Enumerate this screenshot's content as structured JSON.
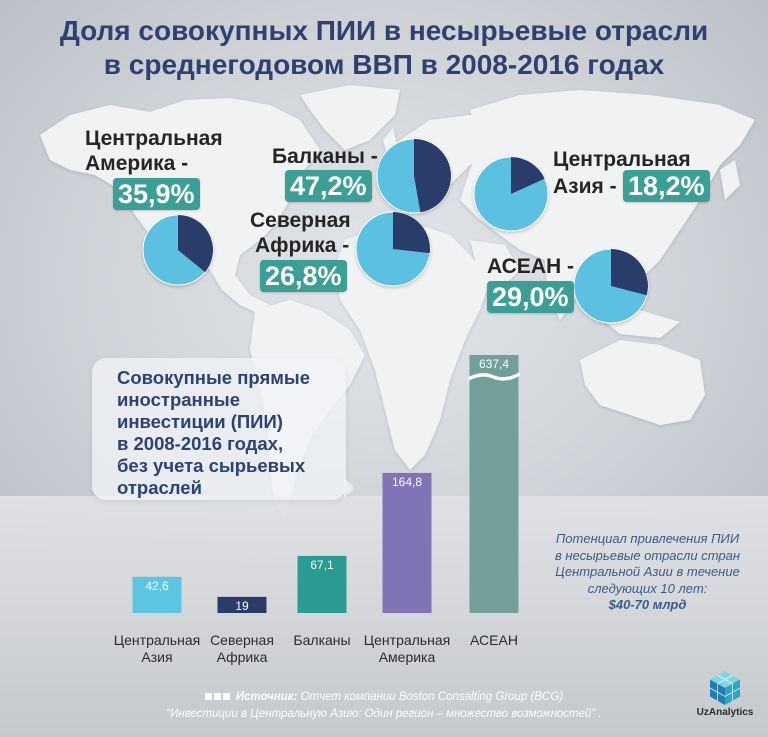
{
  "title_lines": [
    "Доля совокупных ПИИ в несырьевые отрасли",
    "в среднегодовом ВВП в 2008-2016 годах"
  ],
  "colors": {
    "title": "#2f4170",
    "pie_main": "#5bc1e0",
    "pie_slice": "#2c3c6b",
    "badge": "#3c9f95",
    "bars": [
      "#5cc6e2",
      "#2b3b6a",
      "#2a9b92",
      "#8073b6",
      "#739f9a"
    ]
  },
  "chart_data": [
    {
      "type": "pie",
      "regions": [
        {
          "name_lines": [
            "Центральная",
            "Америка -"
          ],
          "value": 35.9,
          "value_label": "35,9%"
        },
        {
          "name_lines": [
            "Балканы -"
          ],
          "value": 47.2,
          "value_label": "47,2%"
        },
        {
          "name_lines": [
            "Северная",
            "Африка -"
          ],
          "value": 26.8,
          "value_label": "26,8%"
        },
        {
          "name_lines": [
            "Центральная",
            "Азия -"
          ],
          "value": 18.2,
          "value_label": "18,2%"
        },
        {
          "name_lines": [
            "АСЕАН -"
          ],
          "value": 29.0,
          "value_label": "29,0%"
        }
      ]
    },
    {
      "type": "bar",
      "categories": [
        [
          "Центральная",
          "Азия"
        ],
        [
          "Северная",
          "Африка"
        ],
        [
          "Балканы"
        ],
        [
          "Центральная",
          "Америка"
        ],
        [
          "АСЕАН"
        ]
      ],
      "values": [
        42.6,
        19,
        67.1,
        164.8,
        637.4
      ],
      "value_labels": [
        "42,6",
        "19",
        "67,1",
        "164,8",
        "637,4"
      ],
      "scale_break": true,
      "grid": false
    }
  ],
  "callout_lines": [
    "Совокупные прямые",
    "иностранные",
    "инвестиции (ПИИ)",
    "в 2008-2016 годах,",
    "без учета сырьевых",
    "отраслей"
  ],
  "note_lines": [
    "Потенциал привлечения ПИИ",
    "в несырьевые отрасли стран",
    "Центральной Азии в течение",
    "следующих 10 лет:",
    "$40-70 млрд"
  ],
  "footer": {
    "source_label": "Источник:",
    "source_text": "Отчет компании Boston Consalting Group (BCG)",
    "line2": "“Инвестиции в Центральную Азию: Один регион – множество возможностей” ."
  },
  "logo": {
    "text": "UzAnalytics",
    "icon": "cube-logo-icon"
  }
}
